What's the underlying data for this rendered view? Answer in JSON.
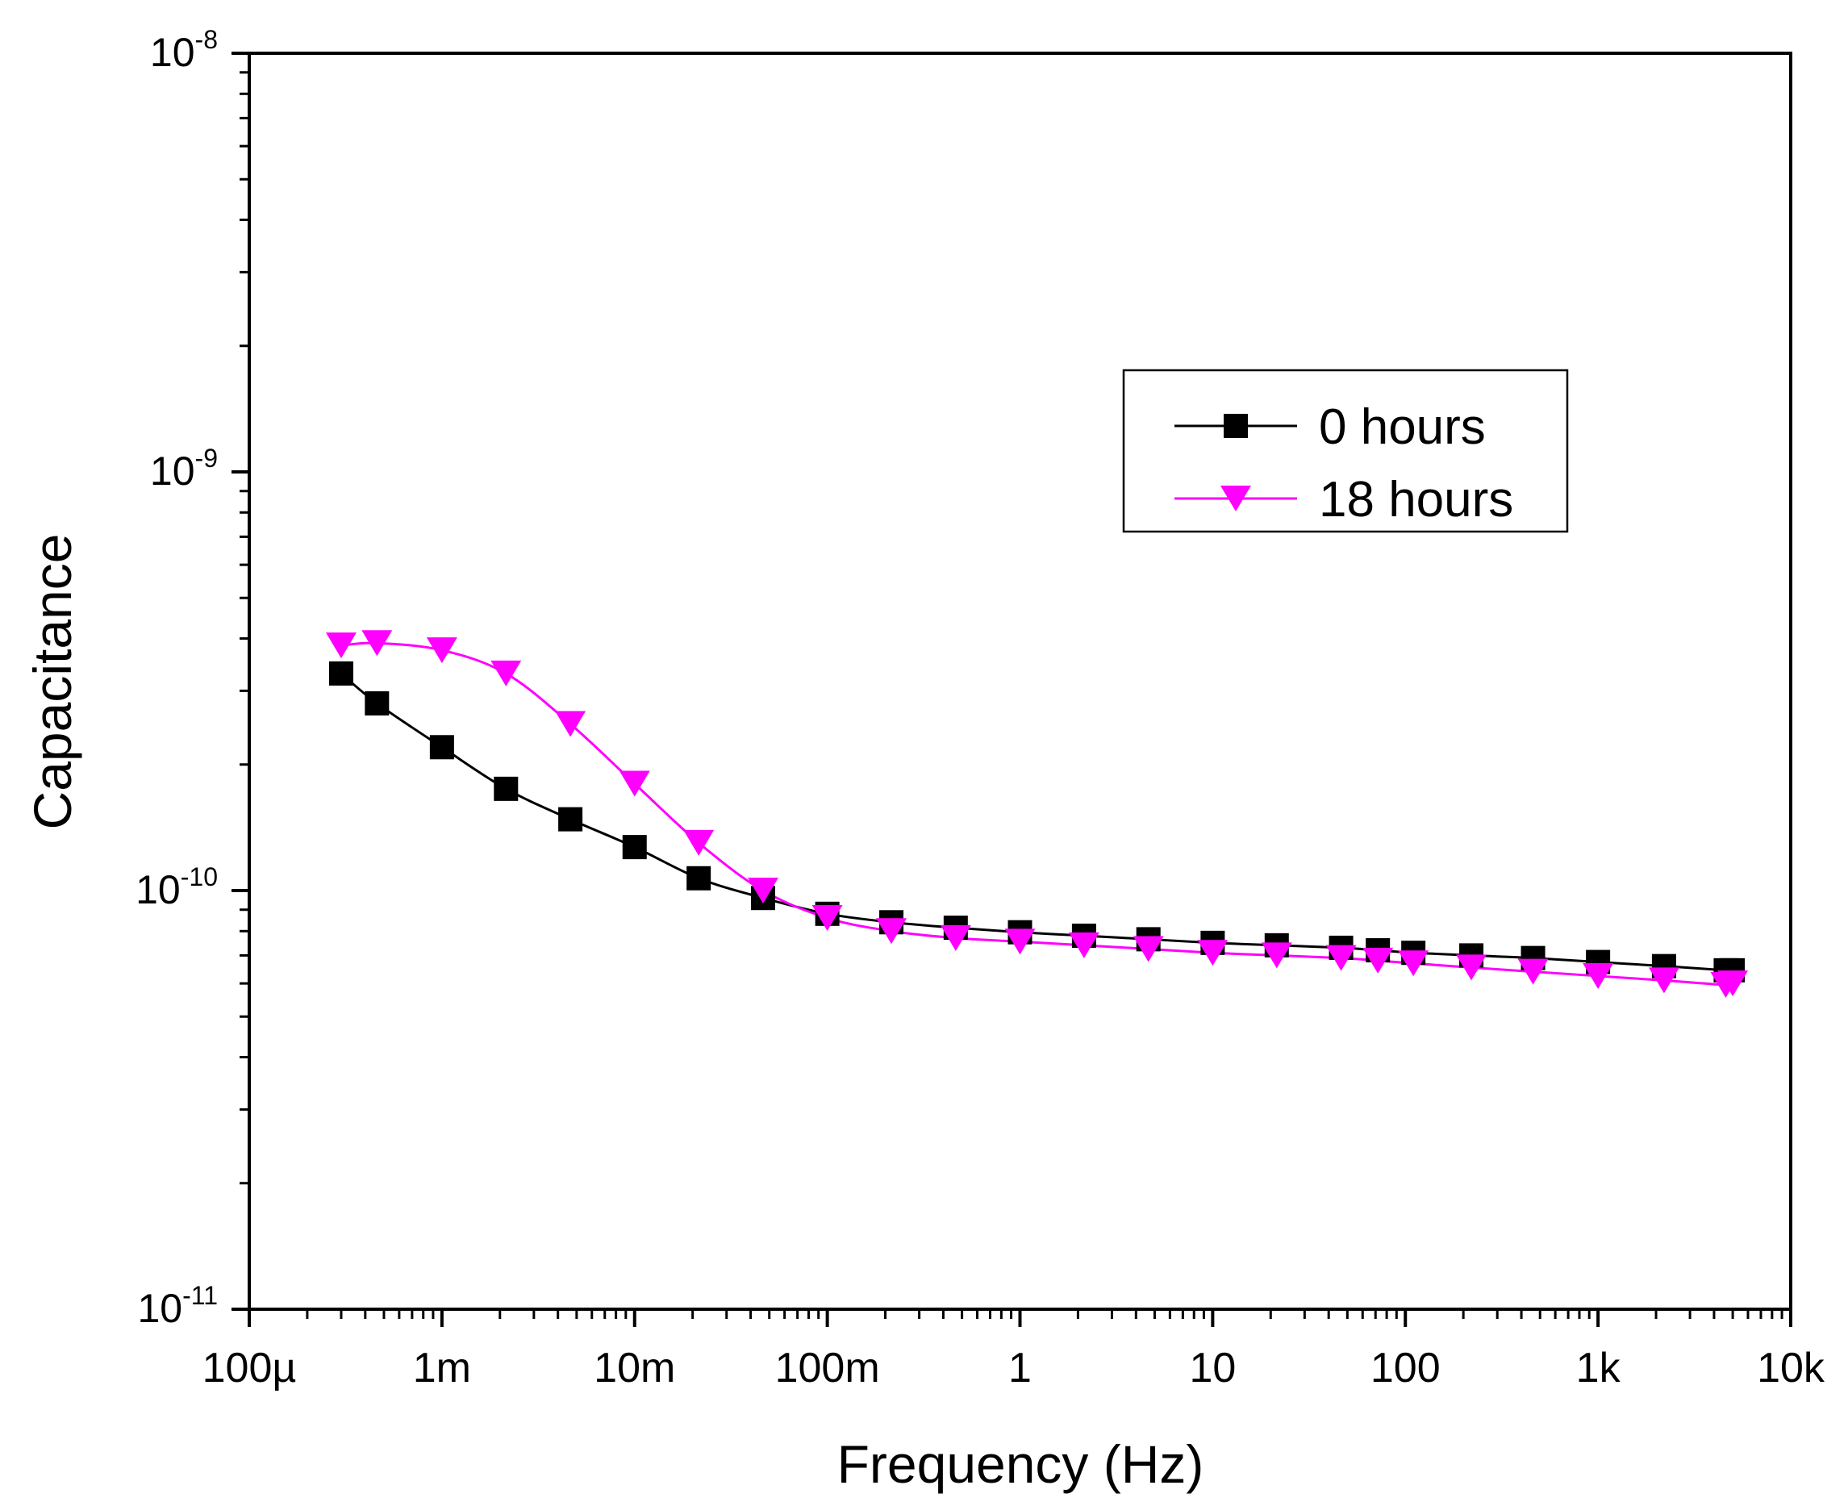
{
  "chart_data": {
    "type": "line",
    "title": "",
    "xlabel": "Frequency (Hz)",
    "ylabel": "Capacitance",
    "x_scale": "log",
    "y_scale": "log",
    "xlim": [
      0.0001,
      10000
    ],
    "ylim": [
      1e-11,
      1e-08
    ],
    "x_ticks": [
      {
        "value": 0.0001,
        "label": "100µ"
      },
      {
        "value": 0.001,
        "label": "1m"
      },
      {
        "value": 0.01,
        "label": "10m"
      },
      {
        "value": 0.1,
        "label": "100m"
      },
      {
        "value": 1,
        "label": "1"
      },
      {
        "value": 10,
        "label": "10"
      },
      {
        "value": 100,
        "label": "100"
      },
      {
        "value": 1000,
        "label": "1k"
      },
      {
        "value": 10000,
        "label": "10k"
      }
    ],
    "y_ticks": [
      {
        "value": 1e-11,
        "base": "10",
        "exp": "-11"
      },
      {
        "value": 1e-10,
        "base": "10",
        "exp": "-10"
      },
      {
        "value": 1e-09,
        "base": "10",
        "exp": "-9"
      },
      {
        "value": 1e-08,
        "base": "10",
        "exp": "-8"
      }
    ],
    "grid": false,
    "legend_position": "top-right",
    "series": [
      {
        "name": "0 hours",
        "color": "#000000",
        "marker": "square",
        "x": [
          0.0003,
          0.00046,
          0.001,
          0.00215,
          0.00464,
          0.01,
          0.0215,
          0.0464,
          0.1,
          0.215,
          0.464,
          1,
          2.15,
          4.64,
          10,
          21.5,
          46.4,
          72,
          110,
          220,
          460,
          1000,
          2200,
          4600,
          5000
        ],
        "y": [
          3.3e-10,
          2.8e-10,
          2.2e-10,
          1.75e-10,
          1.48e-10,
          1.27e-10,
          1.07e-10,
          9.6e-11,
          8.8e-11,
          8.4e-11,
          8.15e-11,
          7.95e-11,
          7.8e-11,
          7.65e-11,
          7.5e-11,
          7.4e-11,
          7.3e-11,
          7.2e-11,
          7.1e-11,
          7e-11,
          6.9e-11,
          6.75e-11,
          6.6e-11,
          6.45e-11,
          6.45e-11
        ]
      },
      {
        "name": "18 hours",
        "color": "#ff00ff",
        "marker": "triangle-down",
        "x": [
          0.0003,
          0.00046,
          0.001,
          0.00215,
          0.00464,
          0.01,
          0.0215,
          0.0464,
          0.1,
          0.215,
          0.464,
          1,
          2.15,
          4.64,
          10,
          21.5,
          46.4,
          72,
          110,
          220,
          460,
          1000,
          2200,
          4600,
          5000
        ],
        "y": [
          3.85e-10,
          3.9e-10,
          3.75e-10,
          3.3e-10,
          2.5e-10,
          1.8e-10,
          1.3e-10,
          1e-10,
          8.6e-11,
          8e-11,
          7.7e-11,
          7.55e-11,
          7.4e-11,
          7.25e-11,
          7.1e-11,
          7e-11,
          6.9e-11,
          6.8e-11,
          6.7e-11,
          6.55e-11,
          6.4e-11,
          6.25e-11,
          6.1e-11,
          5.95e-11,
          6e-11
        ]
      }
    ]
  }
}
